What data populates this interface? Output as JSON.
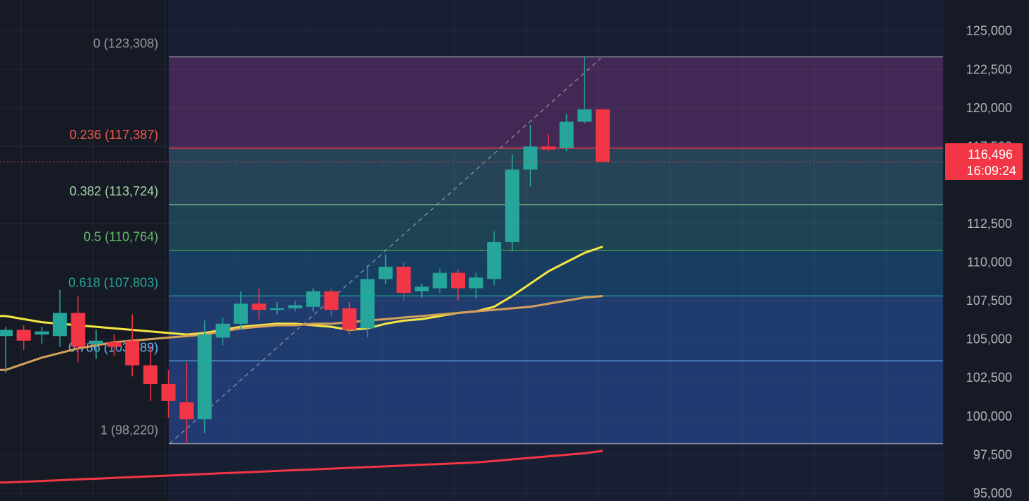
{
  "chart_data": {
    "type": "candlestick",
    "ylim": [
      94500,
      127000
    ],
    "yticks": [
      125000,
      122500,
      120000,
      117500,
      112500,
      110000,
      107500,
      105000,
      102500,
      100000,
      97500,
      95000
    ],
    "ytick_labels": [
      "125,000",
      "122,500",
      "120,000",
      "117,500",
      "112,500",
      "110,000",
      "107,500",
      "105,000",
      "102,500",
      "100,000",
      "97,500",
      "95,000"
    ],
    "current_price": {
      "value": 116496,
      "label": "116,496",
      "countdown": "16:09:24"
    },
    "fibonacci": {
      "levels": [
        {
          "ratio": 0,
          "price": 123308,
          "label": "0 (123,308)",
          "line_color": "#9598a1",
          "text_color": "#9598a1",
          "fill_color": "#4a2a5a"
        },
        {
          "ratio": 0.236,
          "price": 117387,
          "label": "0.236 (117,387)",
          "line_color": "#f23645",
          "text_color": "#f05a4a",
          "fill_color": "#2a4a5e"
        },
        {
          "ratio": 0.382,
          "price": 113724,
          "label": "0.382 (113,724)",
          "line_color": "#81c784",
          "text_color": "#a5d6a7",
          "fill_color": "#1e4a5c"
        },
        {
          "ratio": 0.5,
          "price": 110764,
          "label": "0.5 (110,764)",
          "line_color": "#4caf50",
          "text_color": "#66bb6a",
          "fill_color": "#17446a"
        },
        {
          "ratio": 0.618,
          "price": 107803,
          "label": "0.618 (107,803)",
          "line_color": "#26a69a",
          "text_color": "#26a69a",
          "fill_color": "#22427a"
        },
        {
          "ratio": 0.786,
          "price": 103589,
          "label": "0.786 (103,589)",
          "line_color": "#64b5f6",
          "text_color": "#64b5f6",
          "fill_color": "#25407c"
        },
        {
          "ratio": 1,
          "price": 98220,
          "label": "1 (98,220)",
          "line_color": "#9598a1",
          "text_color": "#9598a1",
          "fill_color": "#1f2e5c"
        }
      ]
    },
    "candles": [
      {
        "o": 105200,
        "h": 105800,
        "l": 102800,
        "c": 105600
      },
      {
        "o": 105600,
        "h": 105900,
        "l": 104300,
        "c": 104900
      },
      {
        "o": 105300,
        "h": 105800,
        "l": 104700,
        "c": 105500
      },
      {
        "o": 105200,
        "h": 108200,
        "l": 104500,
        "c": 106700
      },
      {
        "o": 106700,
        "h": 107800,
        "l": 103500,
        "c": 104500
      },
      {
        "o": 104700,
        "h": 105600,
        "l": 103700,
        "c": 104900
      },
      {
        "o": 104800,
        "h": 105300,
        "l": 103900,
        "c": 104500
      },
      {
        "o": 104900,
        "h": 106600,
        "l": 102600,
        "c": 103300
      },
      {
        "o": 103300,
        "h": 104600,
        "l": 101000,
        "c": 102100
      },
      {
        "o": 102100,
        "h": 103000,
        "l": 99900,
        "c": 101000
      },
      {
        "o": 100900,
        "h": 103500,
        "l": 98220,
        "c": 99800
      },
      {
        "o": 99800,
        "h": 106200,
        "l": 98900,
        "c": 105300
      },
      {
        "o": 105100,
        "h": 106400,
        "l": 104600,
        "c": 106000
      },
      {
        "o": 106000,
        "h": 108100,
        "l": 105600,
        "c": 107300
      },
      {
        "o": 107300,
        "h": 108300,
        "l": 106300,
        "c": 106900
      },
      {
        "o": 106900,
        "h": 107400,
        "l": 106600,
        "c": 107000
      },
      {
        "o": 107000,
        "h": 107500,
        "l": 106800,
        "c": 107200
      },
      {
        "o": 107100,
        "h": 108300,
        "l": 106800,
        "c": 108100
      },
      {
        "o": 108100,
        "h": 108300,
        "l": 106500,
        "c": 106900
      },
      {
        "o": 107000,
        "h": 107400,
        "l": 105300,
        "c": 105600
      },
      {
        "o": 105700,
        "h": 109800,
        "l": 105100,
        "c": 108900
      },
      {
        "o": 108900,
        "h": 110500,
        "l": 108600,
        "c": 109700
      },
      {
        "o": 109700,
        "h": 110000,
        "l": 107500,
        "c": 108000
      },
      {
        "o": 108100,
        "h": 108600,
        "l": 107700,
        "c": 108400
      },
      {
        "o": 108300,
        "h": 109600,
        "l": 108000,
        "c": 109300
      },
      {
        "o": 109300,
        "h": 109500,
        "l": 107500,
        "c": 108300
      },
      {
        "o": 108300,
        "h": 109300,
        "l": 107600,
        "c": 109000
      },
      {
        "o": 108900,
        "h": 112000,
        "l": 108500,
        "c": 111300
      },
      {
        "o": 111300,
        "h": 117000,
        "l": 110700,
        "c": 116000
      },
      {
        "o": 116000,
        "h": 118900,
        "l": 114900,
        "c": 117500
      },
      {
        "o": 117500,
        "h": 118300,
        "l": 117200,
        "c": 117300
      },
      {
        "o": 117400,
        "h": 119600,
        "l": 117200,
        "c": 119100
      },
      {
        "o": 119100,
        "h": 123308,
        "l": 119000,
        "c": 119900
      },
      {
        "o": 119900,
        "h": 119900,
        "l": 116500,
        "c": 116496
      }
    ],
    "moving_averages": [
      {
        "color": "#f5e642",
        "values": [
          106500,
          106300,
          106100,
          106000,
          105900,
          105800,
          105700,
          105600,
          105500,
          105400,
          105300,
          105400,
          105600,
          105800,
          105900,
          106000,
          106000,
          105900,
          105800,
          105600,
          105700,
          106000,
          106200,
          106300,
          106500,
          106700,
          106800,
          107100,
          107800,
          108600,
          109400,
          110000,
          110600,
          111000
        ]
      },
      {
        "color": "#d4a05a",
        "values": [
          103000,
          103400,
          103800,
          104100,
          104400,
          104600,
          104800,
          104900,
          105000,
          105100,
          105200,
          105300,
          105500,
          105700,
          105800,
          105900,
          105900,
          106000,
          106000,
          106100,
          106200,
          106300,
          106400,
          106500,
          106600,
          106700,
          106800,
          106900,
          107000,
          107100,
          107300,
          107500,
          107700,
          107800
        ]
      },
      {
        "color": "#f23645",
        "values": [
          95700,
          95750,
          95800,
          95850,
          95900,
          95950,
          96000,
          96050,
          96100,
          96150,
          96200,
          96250,
          96300,
          96350,
          96400,
          96450,
          96500,
          96550,
          96600,
          96650,
          96700,
          96750,
          96800,
          96850,
          96900,
          96950,
          97000,
          97100,
          97200,
          97300,
          97400,
          97500,
          97600,
          97750
        ]
      }
    ]
  }
}
